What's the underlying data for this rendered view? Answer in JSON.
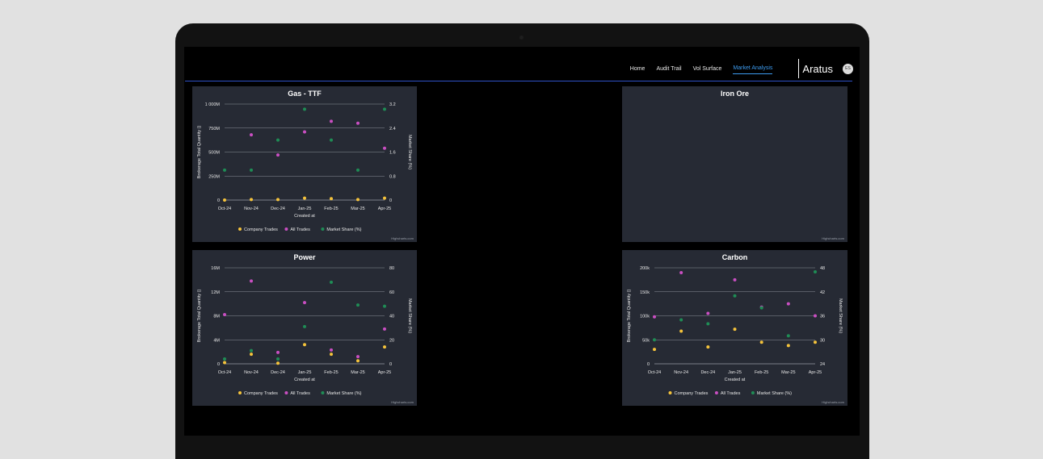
{
  "nav": {
    "links": [
      "Home",
      "Audit Trail",
      "Vol Surface",
      "Market Analysis"
    ],
    "active": "Market Analysis",
    "brand": "Aratus",
    "avatar": "ES"
  },
  "colors": {
    "panel_bg": "#262a34",
    "company_trades": "#f5c33b",
    "all_trades": "#c94fc2",
    "market_share": "#1f8c55",
    "accent": "#3d9cf0"
  },
  "chart_data": [
    {
      "type": "scatter",
      "title": "Gas - TTF",
      "xlabel": "Created at",
      "ylabel": "Brokerage Total Quantity ()",
      "y2label": "Market Share (%)",
      "categories": [
        "Oct-24",
        "Nov-24",
        "Dec-24",
        "Jan-25",
        "Feb-25",
        "Mar-25",
        "Apr-25"
      ],
      "yticks": [
        "0",
        "250M",
        "500M",
        "750M",
        "1 000M"
      ],
      "y2ticks": [
        "0",
        "0.8",
        "1.6",
        "2.4",
        "3.2"
      ],
      "ylim": [
        0,
        1000000000
      ],
      "y2lim": [
        0,
        3.2
      ],
      "series": [
        {
          "name": "Company Trades",
          "axis": "left",
          "values": [
            0,
            5000000,
            5000000,
            20000000,
            15000000,
            5000000,
            20000000
          ]
        },
        {
          "name": "All Trades",
          "axis": "left",
          "values": [
            null,
            680000000,
            470000000,
            710000000,
            820000000,
            800000000,
            540000000
          ]
        },
        {
          "name": "Market Share (%)",
          "axis": "right",
          "values": [
            1.0,
            1.0,
            2.0,
            3.03,
            2.0,
            1.0,
            3.03
          ]
        }
      ],
      "legend": "bottom",
      "credit": "Highcharts.com"
    },
    {
      "type": "scatter",
      "title": "Iron Ore",
      "empty": true,
      "credit": "Highcharts.com"
    },
    {
      "type": "scatter",
      "title": "Power",
      "xlabel": "Created at",
      "ylabel": "Brokerage Total Quantity ()",
      "y2label": "Market Share (%)",
      "categories": [
        "Oct-24",
        "Nov-24",
        "Dec-24",
        "Jan-25",
        "Feb-25",
        "Mar-25",
        "Apr-25"
      ],
      "yticks": [
        "0",
        "4M",
        "8M",
        "12M",
        "16M"
      ],
      "y2ticks": [
        "0",
        "20",
        "40",
        "60",
        "80"
      ],
      "ylim": [
        0,
        16000000
      ],
      "y2lim": [
        0,
        80
      ],
      "series": [
        {
          "name": "Company Trades",
          "axis": "left",
          "values": [
            200000,
            1600000,
            100000,
            3200000,
            1600000,
            500000,
            2800000
          ]
        },
        {
          "name": "All Trades",
          "axis": "left",
          "values": [
            8200000,
            13800000,
            1900000,
            10200000,
            2300000,
            1200000,
            5800000
          ]
        },
        {
          "name": "Market Share (%)",
          "axis": "right",
          "values": [
            4,
            11,
            4,
            31,
            68,
            49,
            48
          ]
        }
      ],
      "legend": "bottom",
      "credit": "Highcharts.com"
    },
    {
      "type": "scatter",
      "title": "Carbon",
      "xlabel": "Created at",
      "ylabel": "Brokerage Total Quantity ()",
      "y2label": "Market Share (%)",
      "categories": [
        "Oct-24",
        "Nov-24",
        "Dec-24",
        "Jan-25",
        "Feb-25",
        "Mar-25",
        "Apr-25"
      ],
      "yticks": [
        "0",
        "50k",
        "100k",
        "150k",
        "200k"
      ],
      "y2ticks": [
        "24",
        "30",
        "36",
        "42",
        "48"
      ],
      "ylim": [
        0,
        200000
      ],
      "y2lim": [
        24,
        48
      ],
      "series": [
        {
          "name": "Company Trades",
          "axis": "left",
          "values": [
            30000,
            68000,
            35000,
            72000,
            45000,
            38000,
            45000
          ]
        },
        {
          "name": "All Trades",
          "axis": "left",
          "values": [
            98000,
            190000,
            105000,
            175000,
            118000,
            125000,
            100000
          ]
        },
        {
          "name": "Market Share (%)",
          "axis": "right",
          "values": [
            30,
            35,
            34,
            41,
            38,
            31,
            47
          ]
        }
      ],
      "legend": "bottom",
      "credit": "Highcharts.com"
    }
  ]
}
